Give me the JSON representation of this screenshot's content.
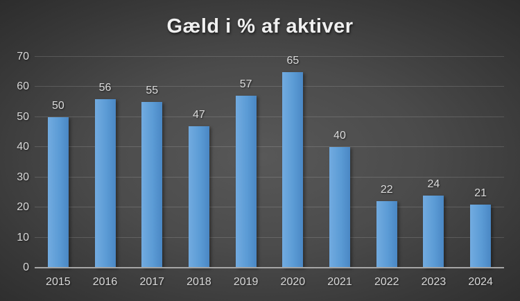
{
  "chart_data": {
    "type": "bar",
    "title": "Gæld i % af aktiver",
    "categories": [
      "2015",
      "2016",
      "2017",
      "2018",
      "2019",
      "2020",
      "2021",
      "2022",
      "2023",
      "2024"
    ],
    "values": [
      50,
      56,
      55,
      47,
      57,
      65,
      40,
      22,
      24,
      21
    ],
    "data_labels": [
      "50",
      "56",
      "55",
      "47",
      "57",
      "65",
      "40",
      "22",
      "24",
      "21"
    ],
    "xlabel": "",
    "ylabel": "",
    "ylim": [
      0,
      70
    ],
    "yticks": [
      0,
      10,
      20,
      30,
      40,
      50,
      60,
      70
    ],
    "grid": true,
    "legend": false,
    "colors": {
      "bar": "#5B9BD5",
      "bar_gradient_left": "#72ABE0",
      "bar_gradient_right": "#4A87C4",
      "background_center": "#565656",
      "background_edge": "#262626",
      "gridline": "rgba(255,255,255,0.15)",
      "axis_line": "#A6A6A6",
      "title_text": "#F0F0F0",
      "tick_text": "#D9D9D9",
      "data_label_text": "#DCDCDC"
    }
  }
}
